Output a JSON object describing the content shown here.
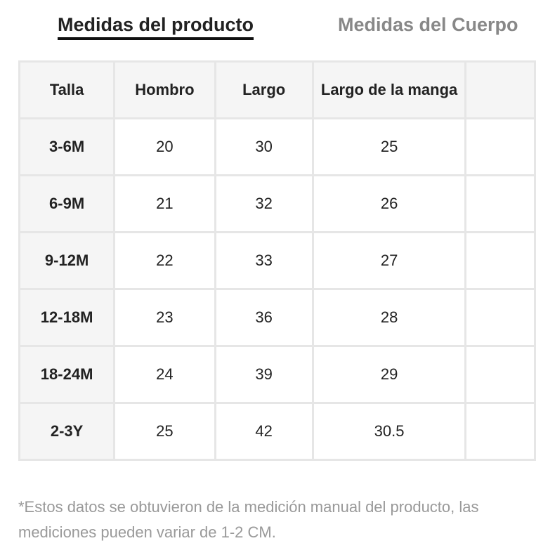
{
  "tabs": [
    "Medidas del producto",
    "Medidas del Cuerpo"
  ],
  "table": {
    "header": [
      "Talla",
      "Hombro",
      "Largo",
      "Largo de la manga"
    ],
    "rows": [
      [
        "3-6M",
        "20",
        "30",
        "25"
      ],
      [
        "6-9M",
        "21",
        "32",
        "26"
      ],
      [
        "9-12M",
        "22",
        "33",
        "27"
      ],
      [
        "12-18M",
        "23",
        "36",
        "28"
      ],
      [
        "18-24M",
        "24",
        "39",
        "29"
      ],
      [
        "2-3Y",
        "25",
        "42",
        "30.5"
      ]
    ]
  },
  "note": "*Estos datos se obtuvieron de la medición manual del producto, las mediciones pueden variar de 1-2 CM."
}
